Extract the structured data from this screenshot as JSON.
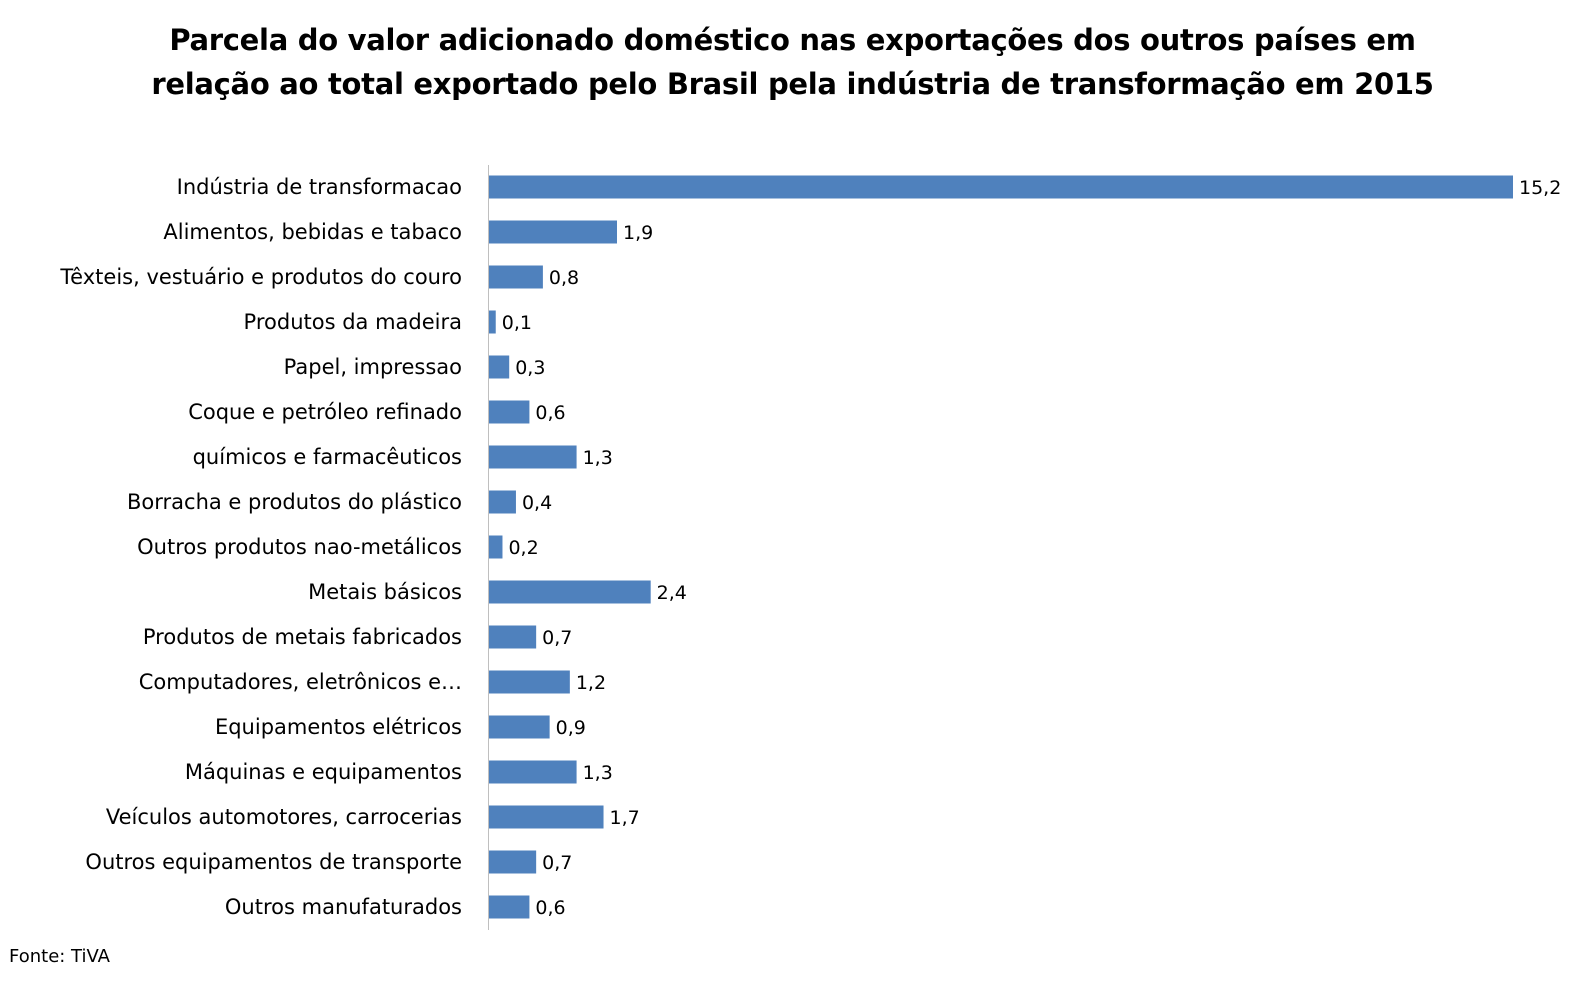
{
  "chart_data": {
    "type": "bar",
    "orientation": "horizontal",
    "title_lines": [
      "Parcela do valor adicionado doméstico nas exportações dos outros países em",
      "relação ao total exportado pelo Brasil pela indústria de transformação em 2015"
    ],
    "categories": [
      "Indústria de transformacao",
      "Alimentos, bebidas e tabaco",
      "Têxteis, vestuário e produtos do couro",
      "Produtos da madeira",
      "Papel, impressao",
      "Coque e petróleo refinado",
      "químicos e farmacêuticos",
      "Borracha e produtos do plástico",
      "Outros produtos nao-metálicos",
      "Metais básicos",
      "Produtos de metais fabricados",
      "Computadores, eletrônicos e…",
      "Equipamentos elétricos",
      "Máquinas e equipamentos",
      "Veículos automotores, carrocerias",
      "Outros equipamentos de transporte",
      "Outros  manufaturados"
    ],
    "values": [
      15.2,
      1.9,
      0.8,
      0.1,
      0.3,
      0.6,
      1.3,
      0.4,
      0.2,
      2.4,
      0.7,
      1.2,
      0.9,
      1.3,
      1.7,
      0.7,
      0.6
    ],
    "value_labels": [
      "15,2",
      "1,9",
      "0,8",
      "0,1",
      "0,3",
      "0,6",
      "1,3",
      "0,4",
      "0,2",
      "2,4",
      "0,7",
      "1,2",
      "0,9",
      "1,3",
      "1,7",
      "0,7",
      "0,6"
    ],
    "xlim": [
      0,
      15.2
    ],
    "grid": false,
    "legend": "none",
    "bar_color": "#4f81bd",
    "axis_color": "#bfbfbf"
  },
  "source": "Fonte: TiVA"
}
